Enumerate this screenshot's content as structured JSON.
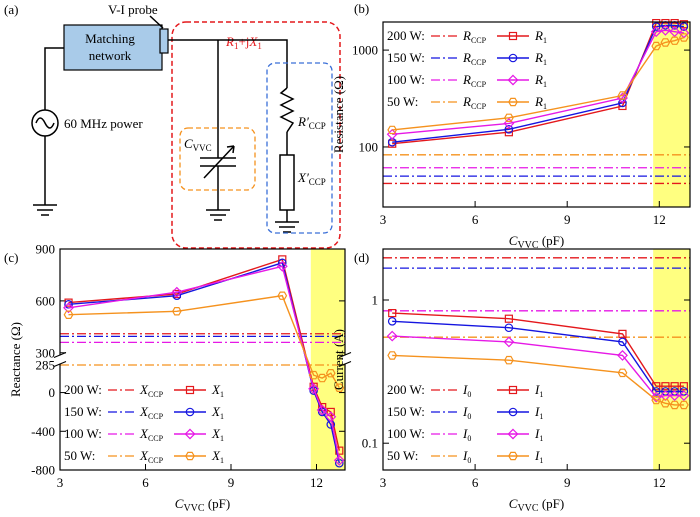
{
  "diagram": {
    "panel_label": "(a)",
    "probe_label": "V-I probe",
    "block_label": [
      "Matching",
      "network"
    ],
    "source_label": "60 MHz power",
    "load_label": {
      "main": "R",
      "sub": "1",
      "rest": "+j",
      "main2": "X",
      "sub2": "1"
    },
    "capacitor_label": {
      "main": "C",
      "sub": "VVC"
    },
    "resistor_label": {
      "main": "R′",
      "sub": "CCP"
    },
    "reactance_label": {
      "main": "X′",
      "sub": "CCP"
    }
  },
  "chart_data": [
    {
      "type": "line",
      "panel_label": "(b)",
      "y_label": "Resistance (Ω)",
      "x_label": {
        "main": "C",
        "sub": "VVC",
        "rest": " (pF)"
      },
      "xlim": [
        3,
        13
      ],
      "xticks": [
        3,
        6,
        9,
        12
      ],
      "log_y": true,
      "ylim": [
        24,
        1950
      ],
      "yticks": [
        100,
        1000
      ],
      "highlight_x": [
        11.8,
        13
      ],
      "highlight_color": "#ffff80",
      "legend": "upper left",
      "x": [
        3.3,
        7.1,
        10.8,
        11.9,
        12.2,
        12.5,
        12.8
      ],
      "series": [
        {
          "power": "200 W:",
          "ref_name": {
            "main": "R",
            "sub": "CCP"
          },
          "ref_value": 42,
          "name": {
            "main": "R",
            "sub": "1"
          },
          "color": "#e4181c",
          "marker": "square",
          "values": [
            108,
            142,
            265,
            1900,
            1900,
            1900,
            1850
          ]
        },
        {
          "power": "150 W:",
          "ref_name": {
            "main": "R",
            "sub": "CCP"
          },
          "ref_value": 50,
          "name": {
            "main": "R",
            "sub": "1"
          },
          "color": "#1515e0",
          "marker": "circle",
          "values": [
            112,
            152,
            285,
            1750,
            1800,
            1800,
            1750
          ]
        },
        {
          "power": "100 W:",
          "ref_name": {
            "main": "R",
            "sub": "CCP"
          },
          "ref_value": 61,
          "name": {
            "main": "R",
            "sub": "1"
          },
          "color": "#e619e6",
          "marker": "diamond",
          "values": [
            135,
            175,
            320,
            1550,
            1600,
            1550,
            1500
          ]
        },
        {
          "power": "50 W:",
          "ref_name": {
            "main": "R",
            "sub": "CCP"
          },
          "ref_value": 83,
          "name": {
            "main": "R",
            "sub": "1"
          },
          "color": "#f5921e",
          "marker": "hexagon",
          "values": [
            150,
            200,
            340,
            1100,
            1200,
            1250,
            1350
          ]
        }
      ]
    },
    {
      "type": "line",
      "panel_label": "(c)",
      "y_label": "Reactance (Ω)",
      "x_label": {
        "main": "C",
        "sub": "VVC",
        "rest": " (pF)"
      },
      "xlim": [
        3,
        13
      ],
      "xticks": [
        3,
        6,
        9,
        12
      ],
      "y_segments": [
        {
          "ylim": [
            -800,
            290
          ],
          "yticks": [
            -800,
            -400,
            0,
            285
          ]
        },
        {
          "ylim": [
            290,
            900
          ],
          "yticks": [
            300,
            600,
            900
          ]
        }
      ],
      "highlight_x": [
        11.8,
        13
      ],
      "highlight_color": "#ffff80",
      "legend": "lower left",
      "x": [
        3.3,
        7.1,
        10.8,
        11.9,
        12.2,
        12.5,
        12.8
      ],
      "series": [
        {
          "power": "200 W:",
          "ref_name": {
            "main": "X",
            "sub": "CCP"
          },
          "ref_value": 410,
          "name": {
            "main": "X",
            "sub": "1"
          },
          "color": "#e4181c",
          "marker": "square",
          "values": [
            590,
            640,
            840,
            60,
            -150,
            -200,
            -600
          ]
        },
        {
          "power": "150 W:",
          "ref_name": {
            "main": "X",
            "sub": "CCP"
          },
          "ref_value": 395,
          "name": {
            "main": "X",
            "sub": "1"
          },
          "color": "#1515e0",
          "marker": "circle",
          "values": [
            580,
            630,
            820,
            20,
            -200,
            -330,
            -730
          ]
        },
        {
          "power": "100 W:",
          "ref_name": {
            "main": "X",
            "sub": "CCP"
          },
          "ref_value": 360,
          "name": {
            "main": "X",
            "sub": "1"
          },
          "color": "#e619e6",
          "marker": "diamond",
          "values": [
            560,
            650,
            800,
            40,
            -180,
            -250,
            -700
          ]
        },
        {
          "power": "50 W:",
          "ref_name": {
            "main": "X",
            "sub": "CCP"
          },
          "ref_value": 285,
          "name": {
            "main": "X",
            "sub": "1"
          },
          "color": "#f5921e",
          "marker": "hexagon",
          "values": [
            520,
            540,
            630,
            180,
            150,
            200,
            50
          ]
        }
      ]
    },
    {
      "type": "line",
      "panel_label": "(d)",
      "y_label": "Current (A)",
      "x_label": {
        "main": "C",
        "sub": "VVC",
        "rest": " (pF)"
      },
      "xlim": [
        3,
        13
      ],
      "xticks": [
        3,
        6,
        9,
        12
      ],
      "log_y": true,
      "ylim": [
        0.065,
        2.27
      ],
      "yticks": [
        0.1,
        1
      ],
      "highlight_x": [
        11.8,
        13
      ],
      "highlight_color": "#ffff80",
      "legend": "lower left",
      "x": [
        3.3,
        7.1,
        10.8,
        11.9,
        12.2,
        12.5,
        12.8
      ],
      "series": [
        {
          "power": "200 W:",
          "ref_name": {
            "main": "I",
            "sub": "0"
          },
          "ref_value": 1.97,
          "name": {
            "main": "I",
            "sub": "1"
          },
          "color": "#e4181c",
          "marker": "square",
          "values": [
            0.81,
            0.74,
            0.58,
            0.25,
            0.25,
            0.25,
            0.25
          ]
        },
        {
          "power": "150 W:",
          "ref_name": {
            "main": "I",
            "sub": "0"
          },
          "ref_value": 1.67,
          "name": {
            "main": "I",
            "sub": "1"
          },
          "color": "#1515e0",
          "marker": "circle",
          "values": [
            0.71,
            0.64,
            0.51,
            0.23,
            0.23,
            0.23,
            0.23
          ]
        },
        {
          "power": "100 W:",
          "ref_name": {
            "main": "I",
            "sub": "0"
          },
          "ref_value": 0.84,
          "name": {
            "main": "I",
            "sub": "1"
          },
          "color": "#e619e6",
          "marker": "diamond",
          "values": [
            0.56,
            0.51,
            0.41,
            0.21,
            0.215,
            0.215,
            0.215
          ]
        },
        {
          "power": "50 W:",
          "ref_name": {
            "main": "I",
            "sub": "0"
          },
          "ref_value": 0.55,
          "name": {
            "main": "I",
            "sub": "1"
          },
          "color": "#f5921e",
          "marker": "hexagon",
          "values": [
            0.41,
            0.38,
            0.31,
            0.2,
            0.19,
            0.185,
            0.185
          ]
        }
      ]
    }
  ]
}
